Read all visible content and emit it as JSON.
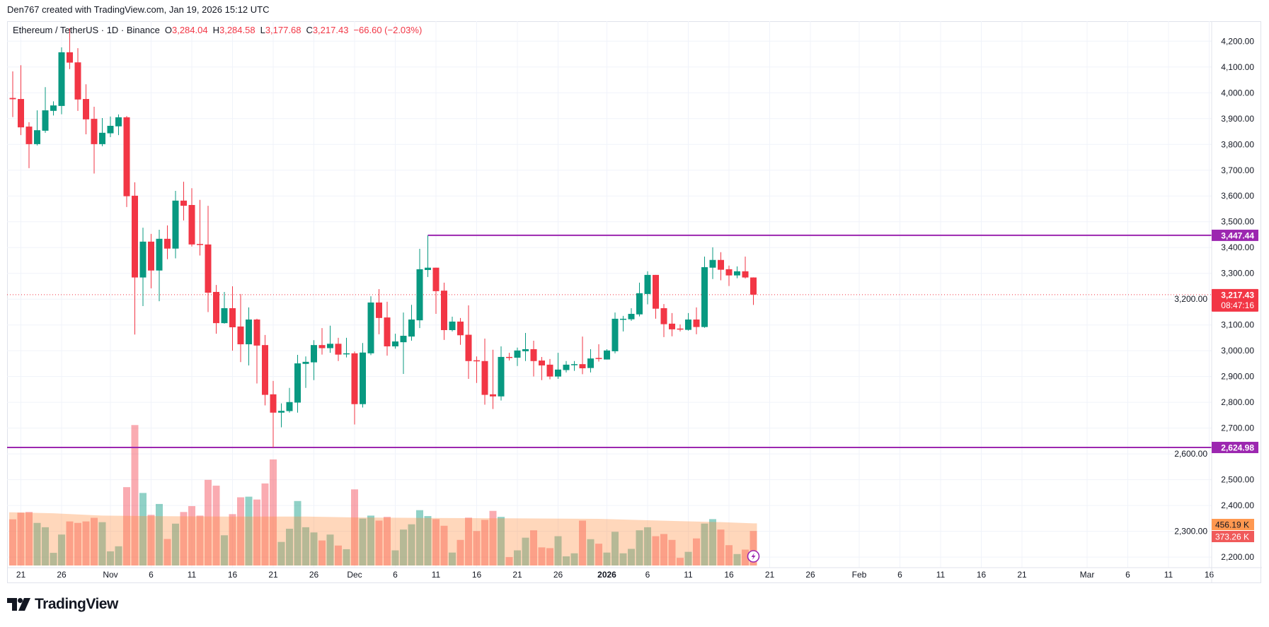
{
  "header": {
    "credit": "Den767 created with TradingView.com, Jan 19, 2026 15:12 UTC"
  },
  "legend": {
    "symbol": "Ethereum / TetherUS · 1D · Binance",
    "open_label": "O",
    "open": "3,284.04",
    "high_label": "H",
    "high": "3,284.58",
    "low_label": "L",
    "low": "3,177.68",
    "close_label": "C",
    "close": "3,217.43",
    "change": "−66.60 (−2.03%)",
    "value_color": "#F23645"
  },
  "logo": {
    "text": "TradingView",
    "icon": "tradingview-logo-icon"
  },
  "chart_data": {
    "type": "candlestick",
    "symbol": "ETHUSDT",
    "interval": "1D",
    "colors": {
      "up": "#089981",
      "down": "#F23645",
      "line": "#9C27B0",
      "volume_ma": "#FF9850",
      "volume_label": "#F05A5A"
    },
    "grid": true,
    "ylim": [
      2200,
      4200
    ],
    "price_axis": {
      "ticks": [
        {
          "value": 4200,
          "label": "4,200.00"
        },
        {
          "value": 4100,
          "label": "4,100.00"
        },
        {
          "value": 4000,
          "label": "4,000.00"
        },
        {
          "value": 3900,
          "label": "3,900.00"
        },
        {
          "value": 3800,
          "label": "3,800.00"
        },
        {
          "value": 3700,
          "label": "3,700.00"
        },
        {
          "value": 3600,
          "label": "3,600.00"
        },
        {
          "value": 3500,
          "label": "3,500.00"
        },
        {
          "value": 3400,
          "label": "3,400.00"
        },
        {
          "value": 3300,
          "label": "3,300.00"
        },
        {
          "value": 3200,
          "label": "3,200.00"
        },
        {
          "value": 3100,
          "label": "3,100.00"
        },
        {
          "value": 3000,
          "label": "3,000.00"
        },
        {
          "value": 2900,
          "label": "2,900.00"
        },
        {
          "value": 2800,
          "label": "2,800.00"
        },
        {
          "value": 2700,
          "label": "2,700.00"
        },
        {
          "value": 2600,
          "label": "2,600.00"
        },
        {
          "value": 2500,
          "label": "2,500.00"
        },
        {
          "value": 2400,
          "label": "2,400.00"
        },
        {
          "value": 2300,
          "label": "2,300.00"
        },
        {
          "value": 2200,
          "label": "2,200.00"
        }
      ]
    },
    "time_axis": {
      "ticks": [
        {
          "date": "2025-10-21",
          "label": "21"
        },
        {
          "date": "2025-10-26",
          "label": "26"
        },
        {
          "date": "2025-11-01",
          "label": "Nov"
        },
        {
          "date": "2025-11-06",
          "label": "6"
        },
        {
          "date": "2025-11-11",
          "label": "11"
        },
        {
          "date": "2025-11-16",
          "label": "16"
        },
        {
          "date": "2025-11-21",
          "label": "21"
        },
        {
          "date": "2025-11-26",
          "label": "26"
        },
        {
          "date": "2025-12-01",
          "label": "Dec"
        },
        {
          "date": "2025-12-06",
          "label": "6"
        },
        {
          "date": "2025-12-11",
          "label": "11"
        },
        {
          "date": "2025-12-16",
          "label": "16"
        },
        {
          "date": "2025-12-21",
          "label": "21"
        },
        {
          "date": "2025-12-26",
          "label": "26"
        },
        {
          "date": "2026-01-01",
          "label": "2026"
        },
        {
          "date": "2026-01-06",
          "label": "6"
        },
        {
          "date": "2026-01-11",
          "label": "11"
        },
        {
          "date": "2026-01-16",
          "label": "16"
        },
        {
          "date": "2026-01-21",
          "label": "21"
        },
        {
          "date": "2026-01-26",
          "label": "26"
        },
        {
          "date": "2026-02-01",
          "label": "Feb"
        },
        {
          "date": "2026-02-06",
          "label": "6"
        },
        {
          "date": "2026-02-11",
          "label": "11"
        },
        {
          "date": "2026-02-16",
          "label": "16"
        },
        {
          "date": "2026-02-21",
          "label": "21"
        },
        {
          "date": "2026-03-01",
          "label": "Mar"
        },
        {
          "date": "2026-03-06",
          "label": "6"
        },
        {
          "date": "2026-03-11",
          "label": "11"
        },
        {
          "date": "2026-03-16",
          "label": "16"
        }
      ]
    },
    "horizontal_lines": [
      {
        "price": 3447.44,
        "label": "3,447.44",
        "from_date": "2025-12-10"
      },
      {
        "price": 2624.98,
        "label": "2,624.98",
        "from_date": null
      }
    ],
    "last_price": {
      "price": 3217.43,
      "label": "3,217.43",
      "countdown": "08:47:16"
    },
    "volume_labels": {
      "ma": "456.19 K",
      "current": "373.26 K"
    },
    "volume_unit": "K",
    "columns": [
      "date",
      "open",
      "high",
      "low",
      "close",
      "volume"
    ],
    "candles": [
      [
        "2025-10-20",
        3980,
        4083,
        3906,
        3975,
        500
      ],
      [
        "2025-10-21",
        3976,
        4107,
        3836,
        3866,
        572
      ],
      [
        "2025-10-22",
        3869,
        3886,
        3708,
        3801,
        579
      ],
      [
        "2025-10-23",
        3801,
        3932,
        3796,
        3855,
        461
      ],
      [
        "2025-10-24",
        3853,
        4022,
        3845,
        3932,
        414
      ],
      [
        "2025-10-25",
        3930,
        3967,
        3912,
        3951,
        137
      ],
      [
        "2025-10-26",
        3949,
        4176,
        3917,
        4157,
        335
      ],
      [
        "2025-10-27",
        4157,
        4250,
        4092,
        4117,
        477
      ],
      [
        "2025-10-28",
        4118,
        4173,
        3930,
        3974,
        461
      ],
      [
        "2025-10-29",
        3976,
        4033,
        3839,
        3897,
        477
      ],
      [
        "2025-10-30",
        3899,
        3946,
        3687,
        3801,
        516
      ],
      [
        "2025-10-31",
        3801,
        3902,
        3793,
        3845,
        469
      ],
      [
        "2025-11-01",
        3843,
        3908,
        3828,
        3872,
        153
      ],
      [
        "2025-11-02",
        3870,
        3916,
        3836,
        3905,
        208
      ],
      [
        "2025-11-03",
        3905,
        3910,
        3557,
        3599,
        848
      ],
      [
        "2025-11-04",
        3601,
        3653,
        3063,
        3284,
        1520
      ],
      [
        "2025-11-05",
        3284,
        3477,
        3173,
        3423,
        785
      ],
      [
        "2025-11-06",
        3423,
        3453,
        3242,
        3311,
        548
      ],
      [
        "2025-11-07",
        3311,
        3469,
        3192,
        3434,
        666
      ],
      [
        "2025-11-08",
        3434,
        3486,
        3355,
        3396,
        287
      ],
      [
        "2025-11-09",
        3396,
        3620,
        3358,
        3582,
        453
      ],
      [
        "2025-11-10",
        3582,
        3655,
        3505,
        3562,
        579
      ],
      [
        "2025-11-11",
        3565,
        3630,
        3404,
        3412,
        643
      ],
      [
        "2025-11-12",
        3414,
        3585,
        3369,
        3410,
        540
      ],
      [
        "2025-11-13",
        3412,
        3562,
        3150,
        3225,
        927
      ],
      [
        "2025-11-14",
        3228,
        3255,
        3066,
        3107,
        864
      ],
      [
        "2025-11-15",
        3107,
        3228,
        3105,
        3165,
        327
      ],
      [
        "2025-11-16",
        3165,
        3250,
        3000,
        3091,
        556
      ],
      [
        "2025-11-17",
        3094,
        3220,
        2956,
        3025,
        738
      ],
      [
        "2025-11-18",
        3025,
        3168,
        2943,
        3121,
        745
      ],
      [
        "2025-11-19",
        3121,
        3124,
        2873,
        3020,
        714
      ],
      [
        "2025-11-20",
        3022,
        3061,
        2788,
        2829,
        888
      ],
      [
        "2025-11-21",
        2831,
        2883,
        2624.98,
        2760,
        1148
      ],
      [
        "2025-11-22",
        2760,
        2796,
        2703,
        2767,
        255
      ],
      [
        "2025-11-23",
        2766,
        2856,
        2760,
        2801,
        398
      ],
      [
        "2025-11-24",
        2799,
        2984,
        2760,
        2951,
        698
      ],
      [
        "2025-11-25",
        2949,
        2978,
        2856,
        2957,
        414
      ],
      [
        "2025-11-26",
        2955,
        3041,
        2886,
        3022,
        358
      ],
      [
        "2025-11-27",
        3022,
        3088,
        2985,
        3010,
        271
      ],
      [
        "2025-11-28",
        3010,
        3097,
        2992,
        3027,
        335
      ],
      [
        "2025-11-29",
        3027,
        3050,
        2960,
        2985,
        216
      ],
      [
        "2025-11-30",
        2987,
        3050,
        2974,
        2990,
        176
      ],
      [
        "2025-12-01",
        2990,
        2997,
        2714,
        2793,
        824
      ],
      [
        "2025-12-02",
        2793,
        3030,
        2780,
        2993,
        508
      ],
      [
        "2025-12-03",
        2990,
        3211,
        2983,
        3187,
        540
      ],
      [
        "2025-12-04",
        3187,
        3239,
        3064,
        3127,
        486
      ],
      [
        "2025-12-05",
        3129,
        3190,
        2981,
        3017,
        526
      ],
      [
        "2025-12-06",
        3017,
        3066,
        3008,
        3036,
        164
      ],
      [
        "2025-12-07",
        3033,
        3148,
        2910,
        3058,
        389
      ],
      [
        "2025-12-08",
        3055,
        3178,
        3039,
        3121,
        446
      ],
      [
        "2025-12-09",
        3118,
        3395,
        3088,
        3316,
        599
      ],
      [
        "2025-12-10",
        3313,
        3447.44,
        3286,
        3322,
        535
      ],
      [
        "2025-12-11",
        3322,
        3322,
        3143,
        3231,
        502
      ],
      [
        "2025-12-12",
        3233,
        3264,
        3042,
        3080,
        430
      ],
      [
        "2025-12-13",
        3080,
        3132,
        3075,
        3113,
        140
      ],
      [
        "2025-12-14",
        3113,
        3127,
        3023,
        3060,
        277
      ],
      [
        "2025-12-15",
        3062,
        3176,
        2891,
        2960,
        518
      ],
      [
        "2025-12-16",
        2963,
        2978,
        2875,
        2960,
        373
      ],
      [
        "2025-12-17",
        2960,
        3047,
        2791,
        2829,
        494
      ],
      [
        "2025-12-18",
        2831,
        3004,
        2774,
        2823,
        591
      ],
      [
        "2025-12-19",
        2823,
        3017,
        2807,
        2976,
        526
      ],
      [
        "2025-12-20",
        2976,
        2992,
        2962,
        2973,
        91
      ],
      [
        "2025-12-21",
        2973,
        3012,
        2941,
        3001,
        164
      ],
      [
        "2025-12-22",
        2998,
        3069,
        2960,
        3006,
        301
      ],
      [
        "2025-12-23",
        3006,
        3039,
        2900,
        2960,
        381
      ],
      [
        "2025-12-24",
        2962,
        2976,
        2886,
        2943,
        196
      ],
      [
        "2025-12-25",
        2946,
        2968,
        2889,
        2900,
        188
      ],
      [
        "2025-12-26",
        2900,
        2992,
        2891,
        2927,
        317
      ],
      [
        "2025-12-27",
        2925,
        2960,
        2916,
        2946,
        99
      ],
      [
        "2025-12-28",
        2946,
        2960,
        2922,
        2948,
        132
      ],
      [
        "2025-12-29",
        2948,
        3055,
        2909,
        2932,
        486
      ],
      [
        "2025-12-30",
        2933,
        3006,
        2916,
        2970,
        285
      ],
      [
        "2025-12-31",
        2972,
        3025,
        2958,
        2968,
        236
      ],
      [
        "2026-01-01",
        2966,
        3006,
        2966,
        3001,
        140
      ],
      [
        "2026-01-02",
        2998,
        3148,
        2990,
        3124,
        365
      ],
      [
        "2026-01-03",
        3123,
        3135,
        3075,
        3124,
        132
      ],
      [
        "2026-01-04",
        3122,
        3165,
        3116,
        3143,
        180
      ],
      [
        "2026-01-05",
        3141,
        3264,
        3133,
        3223,
        381
      ],
      [
        "2026-01-06",
        3220,
        3308,
        3180,
        3294,
        414
      ],
      [
        "2026-01-07",
        3294,
        3294,
        3124,
        3163,
        317
      ],
      [
        "2026-01-08",
        3165,
        3181,
        3053,
        3103,
        341
      ],
      [
        "2026-01-09",
        3105,
        3146,
        3056,
        3083,
        277
      ],
      [
        "2026-01-10",
        3086,
        3102,
        3075,
        3084,
        83
      ],
      [
        "2026-01-11",
        3081,
        3146,
        3078,
        3121,
        148
      ],
      [
        "2026-01-12",
        3121,
        3168,
        3064,
        3092,
        293
      ],
      [
        "2026-01-13",
        3092,
        3365,
        3089,
        3324,
        454
      ],
      [
        "2026-01-14",
        3322,
        3401,
        3278,
        3352,
        502
      ],
      [
        "2026-01-15",
        3352,
        3382,
        3273,
        3314,
        389
      ],
      [
        "2026-01-16",
        3316,
        3330,
        3251,
        3292,
        220
      ],
      [
        "2026-01-17",
        3292,
        3327,
        3281,
        3308,
        124
      ],
      [
        "2026-01-18",
        3308,
        3365,
        3280,
        3284,
        172
      ],
      [
        "2026-01-19",
        3284.04,
        3284.58,
        3177.68,
        3217.43,
        373.26
      ]
    ],
    "volume_ma": [
      [
        "2025-10-20",
        575
      ],
      [
        "2025-10-25",
        565
      ],
      [
        "2025-10-31",
        540
      ],
      [
        "2025-11-06",
        535
      ],
      [
        "2025-11-15",
        530
      ],
      [
        "2025-11-25",
        530
      ],
      [
        "2025-12-01",
        520
      ],
      [
        "2025-12-10",
        515
      ],
      [
        "2025-12-20",
        510
      ],
      [
        "2025-12-31",
        505
      ],
      [
        "2026-01-10",
        480
      ],
      [
        "2026-01-15",
        470
      ],
      [
        "2026-01-19",
        456.19
      ]
    ],
    "markers": [
      {
        "date": "2026-01-19",
        "icon": "lightning-icon"
      }
    ]
  }
}
